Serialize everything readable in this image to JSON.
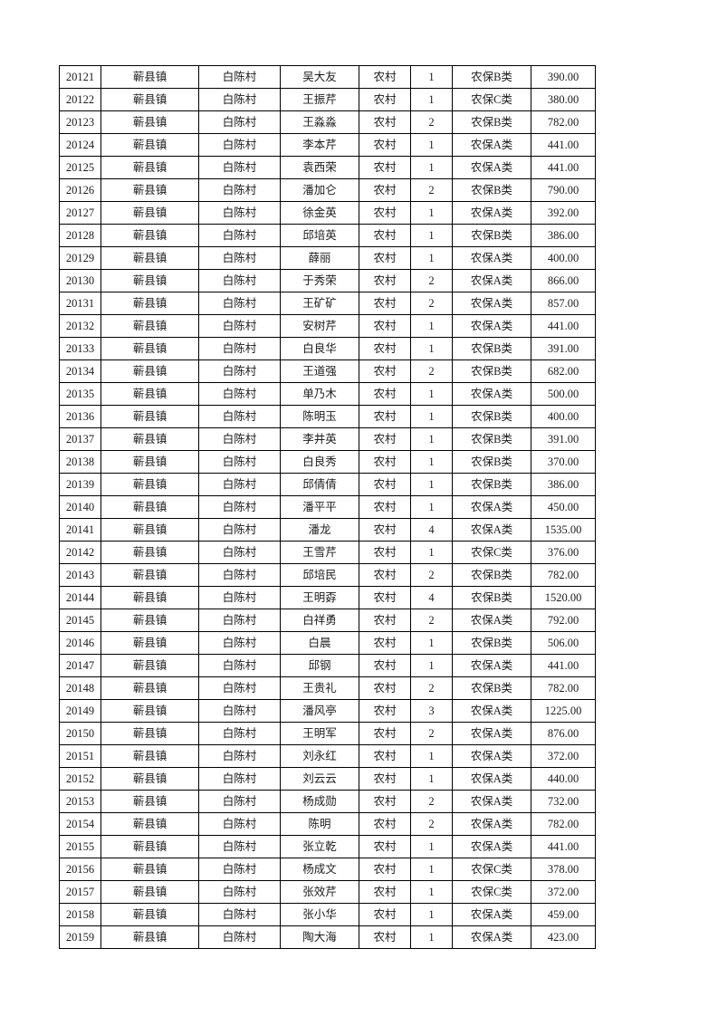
{
  "page": {
    "background_color": "#ffffff",
    "text_color": "#1c1c1c",
    "border_color": "#000000"
  },
  "table": {
    "rows": [
      [
        "20121",
        "蕲县镇",
        "白陈村",
        "吴大友",
        "农村",
        "1",
        "农保B类",
        "390.00"
      ],
      [
        "20122",
        "蕲县镇",
        "白陈村",
        "王振芹",
        "农村",
        "1",
        "农保C类",
        "380.00"
      ],
      [
        "20123",
        "蕲县镇",
        "白陈村",
        "王淼淼",
        "农村",
        "2",
        "农保B类",
        "782.00"
      ],
      [
        "20124",
        "蕲县镇",
        "白陈村",
        "李本芹",
        "农村",
        "1",
        "农保A类",
        "441.00"
      ],
      [
        "20125",
        "蕲县镇",
        "白陈村",
        "袁西荣",
        "农村",
        "1",
        "农保A类",
        "441.00"
      ],
      [
        "20126",
        "蕲县镇",
        "白陈村",
        "潘加仑",
        "农村",
        "2",
        "农保B类",
        "790.00"
      ],
      [
        "20127",
        "蕲县镇",
        "白陈村",
        "徐金英",
        "农村",
        "1",
        "农保A类",
        "392.00"
      ],
      [
        "20128",
        "蕲县镇",
        "白陈村",
        "邱培英",
        "农村",
        "1",
        "农保B类",
        "386.00"
      ],
      [
        "20129",
        "蕲县镇",
        "白陈村",
        "薛丽",
        "农村",
        "1",
        "农保A类",
        "400.00"
      ],
      [
        "20130",
        "蕲县镇",
        "白陈村",
        "于秀荣",
        "农村",
        "2",
        "农保A类",
        "866.00"
      ],
      [
        "20131",
        "蕲县镇",
        "白陈村",
        "王矿矿",
        "农村",
        "2",
        "农保A类",
        "857.00"
      ],
      [
        "20132",
        "蕲县镇",
        "白陈村",
        "安树芹",
        "农村",
        "1",
        "农保A类",
        "441.00"
      ],
      [
        "20133",
        "蕲县镇",
        "白陈村",
        "白良华",
        "农村",
        "1",
        "农保B类",
        "391.00"
      ],
      [
        "20134",
        "蕲县镇",
        "白陈村",
        "王道强",
        "农村",
        "2",
        "农保B类",
        "682.00"
      ],
      [
        "20135",
        "蕲县镇",
        "白陈村",
        "单乃木",
        "农村",
        "1",
        "农保A类",
        "500.00"
      ],
      [
        "20136",
        "蕲县镇",
        "白陈村",
        "陈明玉",
        "农村",
        "1",
        "农保B类",
        "400.00"
      ],
      [
        "20137",
        "蕲县镇",
        "白陈村",
        "李井英",
        "农村",
        "1",
        "农保B类",
        "391.00"
      ],
      [
        "20138",
        "蕲县镇",
        "白陈村",
        "白良秀",
        "农村",
        "1",
        "农保B类",
        "370.00"
      ],
      [
        "20139",
        "蕲县镇",
        "白陈村",
        "邱倩倩",
        "农村",
        "1",
        "农保B类",
        "386.00"
      ],
      [
        "20140",
        "蕲县镇",
        "白陈村",
        "潘平平",
        "农村",
        "1",
        "农保A类",
        "450.00"
      ],
      [
        "20141",
        "蕲县镇",
        "白陈村",
        "潘龙",
        "农村",
        "4",
        "农保A类",
        "1535.00"
      ],
      [
        "20142",
        "蕲县镇",
        "白陈村",
        "王雪芹",
        "农村",
        "1",
        "农保C类",
        "376.00"
      ],
      [
        "20143",
        "蕲县镇",
        "白陈村",
        "邱培民",
        "农村",
        "2",
        "农保B类",
        "782.00"
      ],
      [
        "20144",
        "蕲县镇",
        "白陈村",
        "王明孬",
        "农村",
        "4",
        "农保B类",
        "1520.00"
      ],
      [
        "20145",
        "蕲县镇",
        "白陈村",
        "白祥勇",
        "农村",
        "2",
        "农保A类",
        "792.00"
      ],
      [
        "20146",
        "蕲县镇",
        "白陈村",
        "白晨",
        "农村",
        "1",
        "农保B类",
        "506.00"
      ],
      [
        "20147",
        "蕲县镇",
        "白陈村",
        "邱钢",
        "农村",
        "1",
        "农保A类",
        "441.00"
      ],
      [
        "20148",
        "蕲县镇",
        "白陈村",
        "王贵礼",
        "农村",
        "2",
        "农保B类",
        "782.00"
      ],
      [
        "20149",
        "蕲县镇",
        "白陈村",
        "潘风亭",
        "农村",
        "3",
        "农保A类",
        "1225.00"
      ],
      [
        "20150",
        "蕲县镇",
        "白陈村",
        "王明军",
        "农村",
        "2",
        "农保A类",
        "876.00"
      ],
      [
        "20151",
        "蕲县镇",
        "白陈村",
        "刘永红",
        "农村",
        "1",
        "农保A类",
        "372.00"
      ],
      [
        "20152",
        "蕲县镇",
        "白陈村",
        "刘云云",
        "农村",
        "1",
        "农保A类",
        "440.00"
      ],
      [
        "20153",
        "蕲县镇",
        "白陈村",
        "杨成勋",
        "农村",
        "2",
        "农保A类",
        "732.00"
      ],
      [
        "20154",
        "蕲县镇",
        "白陈村",
        "陈明",
        "农村",
        "2",
        "农保A类",
        "782.00"
      ],
      [
        "20155",
        "蕲县镇",
        "白陈村",
        "张立乾",
        "农村",
        "1",
        "农保A类",
        "441.00"
      ],
      [
        "20156",
        "蕲县镇",
        "白陈村",
        "杨成文",
        "农村",
        "1",
        "农保C类",
        "378.00"
      ],
      [
        "20157",
        "蕲县镇",
        "白陈村",
        "张效芹",
        "农村",
        "1",
        "农保C类",
        "372.00"
      ],
      [
        "20158",
        "蕲县镇",
        "白陈村",
        "张小华",
        "农村",
        "1",
        "农保A类",
        "459.00"
      ],
      [
        "20159",
        "蕲县镇",
        "白陈村",
        "陶大海",
        "农村",
        "1",
        "农保A类",
        "423.00"
      ]
    ]
  }
}
